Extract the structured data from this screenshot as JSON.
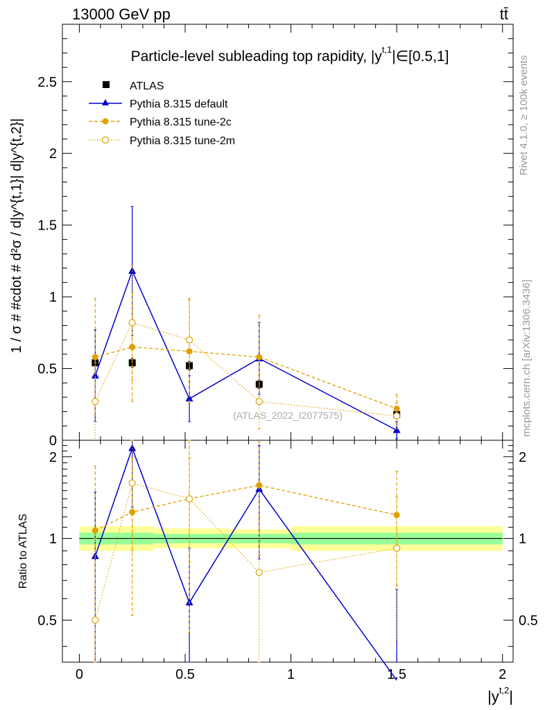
{
  "header": {
    "energy_label": "13000 GeV pp",
    "process_label": "tt̄",
    "rivet_label": "Rivet 4.1.0, ≥ 100k events",
    "mcplots_label": "mcplots.cern.ch [arXiv:1306.3436]"
  },
  "colors": {
    "atlas": "#000000",
    "default": "#0000cc",
    "tune2c": "#e0a000",
    "tune2m": "#e0a000",
    "band_inner": "#99ff99",
    "band_outer": "#ffff99"
  },
  "chart_data": [
    {
      "type": "line",
      "panel": "main",
      "title": "Particle-level subleading top rapidity, |y^{t,1}|∈[0.5,1]",
      "title_main": "Particle-level subleading top rapidity, |y",
      "title_sup": "t,1",
      "title_tail": "|∈[0.5,1]",
      "ylabel": "1 / σ # #cdot # d²σ / d|y^{t,1}| d|y^{t,2}|",
      "xlabel": "",
      "ylim": [
        0,
        2.9
      ],
      "xlim": [
        -0.08,
        2.05
      ],
      "yticks": [
        0,
        0.5,
        1,
        1.5,
        2,
        2.5
      ],
      "ytick_labels": [
        "0",
        "0.5",
        "1",
        "1.5",
        "2",
        "2.5"
      ],
      "watermark": "(ATLAS_2022_I2077575)",
      "legend": {
        "position": "top-left",
        "entries": [
          "ATLAS",
          "Pythia 8.315 default",
          "Pythia 8.315 tune-2c",
          "Pythia 8.315 tune-2m"
        ]
      },
      "x": [
        0.075,
        0.25,
        0.52,
        0.85,
        1.5
      ],
      "series": [
        {
          "name": "ATLAS",
          "style": "square",
          "values": [
            0.54,
            0.54,
            0.52,
            0.39,
            0.18
          ],
          "err": [
            0.02,
            0.03,
            0.03,
            0.03,
            0.02
          ]
        },
        {
          "name": "Pythia 8.315 default",
          "style": "solid-triangle",
          "values": [
            0.45,
            1.18,
            0.29,
            0.57,
            0.07
          ],
          "err": [
            0.32,
            0.45,
            0.16,
            0.25,
            0.06
          ]
        },
        {
          "name": "Pythia 8.315 tune-2c",
          "style": "dashed-dot",
          "values": [
            0.58,
            0.65,
            0.62,
            0.58,
            0.22
          ],
          "err": [
            0.41,
            0.38,
            0.36,
            0.29,
            0.1
          ]
        },
        {
          "name": "Pythia 8.315 tune-2m",
          "style": "dotted-circle",
          "values": [
            0.27,
            0.82,
            0.7,
            0.27,
            0.17
          ],
          "err": [
            0.27,
            0.4,
            0.29,
            0.19,
            0.09
          ]
        }
      ]
    },
    {
      "type": "line",
      "panel": "ratio",
      "ylabel": "Ratio to ATLAS",
      "xlabel": "|y^{t,2}|",
      "xlabel_main": "|y",
      "xlabel_sup": "t,2",
      "xlabel_tail": "|",
      "ylim": [
        0.35,
        2.3
      ],
      "xlim": [
        -0.08,
        2.05
      ],
      "yticks": [
        0.5,
        1,
        2
      ],
      "ytick_labels": [
        "0.5",
        "1",
        "2"
      ],
      "xticks": [
        0,
        0.5,
        1,
        1.5,
        2
      ],
      "xtick_labels": [
        "0",
        "0.5",
        "1",
        "1.5",
        "2"
      ],
      "bins": [
        0,
        0.35,
        0.7,
        1.0,
        2.0
      ],
      "band_inner": [
        [
          0.95,
          1.05
        ],
        [
          0.96,
          1.04
        ],
        [
          0.96,
          1.04
        ],
        [
          0.95,
          1.05
        ]
      ],
      "band_outer": [
        [
          0.9,
          1.11
        ],
        [
          0.92,
          1.09
        ],
        [
          0.92,
          1.08
        ],
        [
          0.9,
          1.11
        ]
      ],
      "x": [
        0.075,
        0.25,
        0.52,
        0.85,
        1.5
      ],
      "series": [
        {
          "name": "Pythia 8.315 default",
          "style": "solid-triangle",
          "values": [
            0.86,
            2.15,
            0.58,
            1.52,
            0.3
          ],
          "err": [
            0.62,
            0.85,
            0.34,
            0.68,
            0.35
          ]
        },
        {
          "name": "Pythia 8.315 tune-2c",
          "style": "dashed-dot",
          "values": [
            1.07,
            1.25,
            1.4,
            1.57,
            1.22
          ],
          "err": [
            0.78,
            0.73,
            0.95,
            0.7,
            0.55
          ]
        },
        {
          "name": "Pythia 8.315 tune-2m",
          "style": "dotted-circle",
          "values": [
            0.5,
            1.6,
            1.4,
            0.75,
            0.92
          ],
          "err": [
            0.5,
            0.7,
            0.58,
            0.45,
            0.5
          ]
        }
      ]
    }
  ]
}
